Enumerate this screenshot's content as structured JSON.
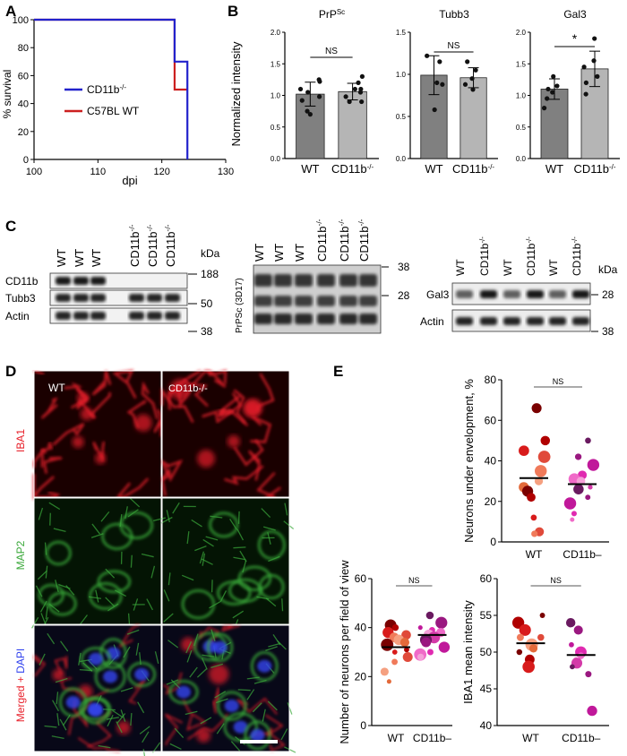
{
  "panels": {
    "A": "A",
    "B": "B",
    "C": "C",
    "D": "D",
    "E": "E"
  },
  "panelA": {
    "ylabel": "% survival",
    "xlabel": "dpi",
    "yticks": [
      "0",
      "20",
      "40",
      "60",
      "80",
      "100"
    ],
    "xticks": [
      "100",
      "110",
      "120",
      "130"
    ],
    "legend": [
      {
        "name": "CD11b",
        "sup": "-/-",
        "color": "#2222cc"
      },
      {
        "name": "C57BL WT",
        "sup": "",
        "color": "#cc1f1f"
      }
    ]
  },
  "panelB": {
    "ylabel": "Normalized intensity",
    "charts": [
      {
        "title": "PrP",
        "title_sup": "Sc",
        "sig": "NS",
        "yticks": [
          "0.0",
          "0.5",
          "1.0",
          "1.5",
          "2.0"
        ],
        "cats": [
          "WT",
          "CD11b"
        ],
        "cat_sup": "-/-"
      },
      {
        "title": "Tubb3",
        "title_sup": "",
        "sig": "NS",
        "yticks": [
          "0.0",
          "0.5",
          "1.0",
          "1.5"
        ],
        "cats": [
          "WT",
          "CD11b"
        ],
        "cat_sup": "-/-"
      },
      {
        "title": "Gal3",
        "title_sup": "",
        "sig": "*",
        "yticks": [
          "0.0",
          "0.5",
          "1.0",
          "1.5",
          "2.0"
        ],
        "cats": [
          "WT",
          "CD11b"
        ],
        "cat_sup": "-/-"
      }
    ]
  },
  "panelC": {
    "blot1": {
      "lanes": [
        "WT",
        "WT",
        "WT",
        "CD11b-/-",
        "CD11b-/-",
        "CD11b-/-"
      ],
      "rows": [
        "CD11b",
        "Tubb3",
        "Actin"
      ],
      "kda_label": "kDa",
      "markers": [
        "188",
        "50",
        "38"
      ]
    },
    "blot2": {
      "lanes": [
        "WT",
        "WT",
        "WT",
        "CD11b-/-",
        "CD11b-/-",
        "CD11b-/-"
      ],
      "ylabel": "PrPSc (3D17)",
      "markers": [
        "38",
        "28"
      ]
    },
    "blot3": {
      "lanes": [
        "WT",
        "CD11b-/-",
        "WT",
        "CD11b-/-",
        "WT",
        "CD11b-/-"
      ],
      "rows": [
        "Gal3",
        "Actin"
      ],
      "kda_label": "kDa",
      "markers": [
        "28",
        "38"
      ]
    }
  },
  "panelD": {
    "col_labels": [
      "WT",
      "CD11b-/-"
    ],
    "row_labels": {
      "iba1": "IBA1",
      "map2": "MAP2",
      "merged": "Merged + ",
      "dapi": "DAPI"
    },
    "colors": {
      "iba1": "#e8202a",
      "map2": "#3aa83a",
      "dapi": "#3344ee"
    }
  },
  "panelE": {
    "plots": [
      {
        "ylabel": "Neurons under envelopment, %",
        "sig": "NS",
        "yticks": [
          "0",
          "20",
          "40",
          "60",
          "80"
        ],
        "cats": [
          "WT",
          "CD11b–"
        ]
      },
      {
        "ylabel": "Number of  neurons per field of view",
        "sig": "NS",
        "yticks": [
          "0",
          "20",
          "40",
          "60"
        ],
        "cats": [
          "WT",
          "CD11b–"
        ]
      },
      {
        "ylabel": "IBA1 mean intensity",
        "sig": "NS",
        "yticks": [
          "40",
          "45",
          "50",
          "55",
          "60"
        ],
        "cats": [
          "WT",
          "CD11b–"
        ]
      }
    ]
  },
  "chart_data": [
    {
      "type": "line",
      "panel": "A",
      "xlabel": "dpi",
      "ylabel": "% survival",
      "xlim": [
        100,
        130
      ],
      "ylim": [
        0,
        100
      ],
      "series": [
        {
          "name": "CD11b-/-",
          "x": [
            100,
            122,
            122,
            124,
            124
          ],
          "y": [
            100,
            100,
            70,
            70,
            0
          ]
        },
        {
          "name": "C57BL WT",
          "x": [
            100,
            122,
            122,
            124
          ],
          "y": [
            100,
            100,
            50,
            50
          ]
        }
      ]
    },
    {
      "type": "bar",
      "panel": "B",
      "title": "PrPSc",
      "categories": [
        "WT",
        "CD11b-/-"
      ],
      "values": [
        1.02,
        1.06
      ],
      "ylim": [
        0,
        2.0
      ],
      "points": [
        [
          1.25,
          1.22,
          1.1,
          1.05,
          0.98,
          0.92,
          0.75,
          0.7
        ],
        [
          1.3,
          1.2,
          1.1,
          1.1,
          1.05,
          0.98,
          0.9,
          0.9
        ]
      ]
    },
    {
      "type": "bar",
      "panel": "B",
      "title": "Tubb3",
      "categories": [
        "WT",
        "CD11b-/-"
      ],
      "values": [
        0.99,
        0.96
      ],
      "ylim": [
        0,
        1.5
      ],
      "points": [
        [
          1.22,
          1.15,
          0.9,
          0.88,
          0.58
        ],
        [
          1.15,
          1.05,
          0.95,
          0.88,
          0.82
        ]
      ]
    },
    {
      "type": "bar",
      "panel": "B",
      "title": "Gal3",
      "categories": [
        "WT",
        "CD11b-/-"
      ],
      "values": [
        1.1,
        1.42
      ],
      "ylim": [
        0,
        2.0
      ],
      "points": [
        [
          1.3,
          1.15,
          1.1,
          1.05,
          0.95,
          0.8
        ],
        [
          1.9,
          1.55,
          1.45,
          1.3,
          1.2,
          1.02
        ]
      ]
    },
    {
      "type": "scatter",
      "panel": "E",
      "ylabel": "Neurons under envelopment, %",
      "ylim": [
        0,
        80
      ],
      "categories": [
        "WT",
        "CD11b–"
      ],
      "means": [
        31.5,
        28.5
      ],
      "points": [
        [
          66,
          50,
          45,
          42,
          35,
          30,
          27,
          25,
          22,
          12,
          5,
          4
        ],
        [
          50,
          42,
          38,
          33,
          31,
          30,
          27,
          26,
          22,
          19,
          14,
          11
        ]
      ]
    },
    {
      "type": "scatter",
      "panel": "E",
      "ylabel": "Number of  neurons per field of view",
      "ylim": [
        0,
        60
      ],
      "categories": [
        "WT",
        "CD11b–"
      ],
      "means": [
        32,
        37
      ],
      "points": [
        [
          41,
          40,
          38,
          37,
          36,
          35,
          34,
          33,
          31,
          30,
          28,
          26,
          22,
          18
        ],
        [
          45,
          42,
          40,
          39,
          38,
          37,
          36,
          35,
          34,
          32,
          30,
          29,
          28
        ]
      ]
    },
    {
      "type": "scatter",
      "panel": "E",
      "ylabel": "IBA1 mean intensity",
      "ylim": [
        40,
        60
      ],
      "categories": [
        "WT",
        "CD11b–"
      ],
      "means": [
        51.2,
        49.6
      ],
      "points": [
        [
          55,
          54,
          53,
          52,
          52,
          51,
          50.5,
          50,
          49,
          48
        ],
        [
          54,
          53,
          51,
          50,
          49.5,
          49,
          48.5,
          48,
          47,
          42
        ]
      ]
    }
  ]
}
